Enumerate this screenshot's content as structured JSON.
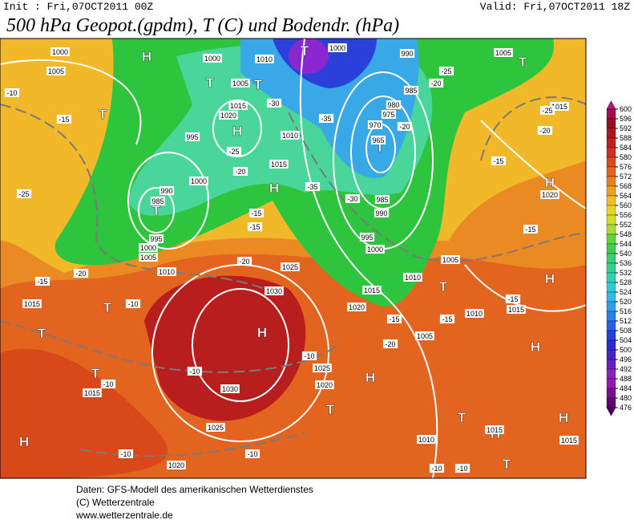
{
  "header": {
    "init": "Init : Fri,07OCT2011 00Z",
    "valid": "Valid: Fri,07OCT2011 18Z",
    "title": "500 hPa Geopot.(gpdm), T (C) und Bodendr. (hPa)"
  },
  "colorbar": {
    "levels": [
      600,
      596,
      592,
      588,
      584,
      580,
      576,
      572,
      568,
      564,
      560,
      556,
      552,
      548,
      544,
      540,
      536,
      532,
      528,
      524,
      520,
      516,
      512,
      508,
      504,
      500,
      496,
      492,
      488,
      484,
      480,
      476
    ]
  },
  "highs_lows": [
    "H",
    "T",
    "T",
    "H",
    "T",
    "T",
    "H",
    "T",
    "H",
    "T",
    "T",
    "T",
    "H",
    "H",
    "T",
    "H",
    "H",
    "H",
    "T",
    "H",
    "H",
    "T",
    "T",
    "T",
    "T"
  ],
  "isobar_labels": [
    "1000",
    "1005",
    "1000",
    "1010",
    "1005",
    "1015",
    "1020",
    "995",
    "1010",
    "1015",
    "990",
    "1000",
    "985",
    "995",
    "1000",
    "1005",
    "1010",
    "965",
    "970",
    "975",
    "980",
    "985",
    "990",
    "985",
    "990",
    "995",
    "1000",
    "1005",
    "1010",
    "1015",
    "1020",
    "1025",
    "1030",
    "1025",
    "1020",
    "1030",
    "1025",
    "1020",
    "1015",
    "1015",
    "1010",
    "1015",
    "1015",
    "1005",
    "1010",
    "1015",
    "1020",
    "1015",
    "1005",
    "1000"
  ],
  "isotherm_labels": [
    "-10",
    "-15",
    "-25",
    "-20",
    "-15",
    "-10",
    "-10",
    "-10",
    "-10",
    "-10",
    "-10",
    "-15",
    "-15",
    "-20",
    "-25",
    "-20",
    "-30",
    "-35",
    "-35",
    "-30",
    "-25",
    "-20",
    "-20",
    "-25",
    "-20",
    "-15",
    "-15",
    "-15",
    "-15",
    "-20",
    "-15",
    "-10",
    "-10"
  ],
  "footer": [
    "Daten: GFS-Modell des amerikanischen Wetterdienstes",
    "(C) Wetterzentrale",
    "www.wetterzentrale.de"
  ]
}
